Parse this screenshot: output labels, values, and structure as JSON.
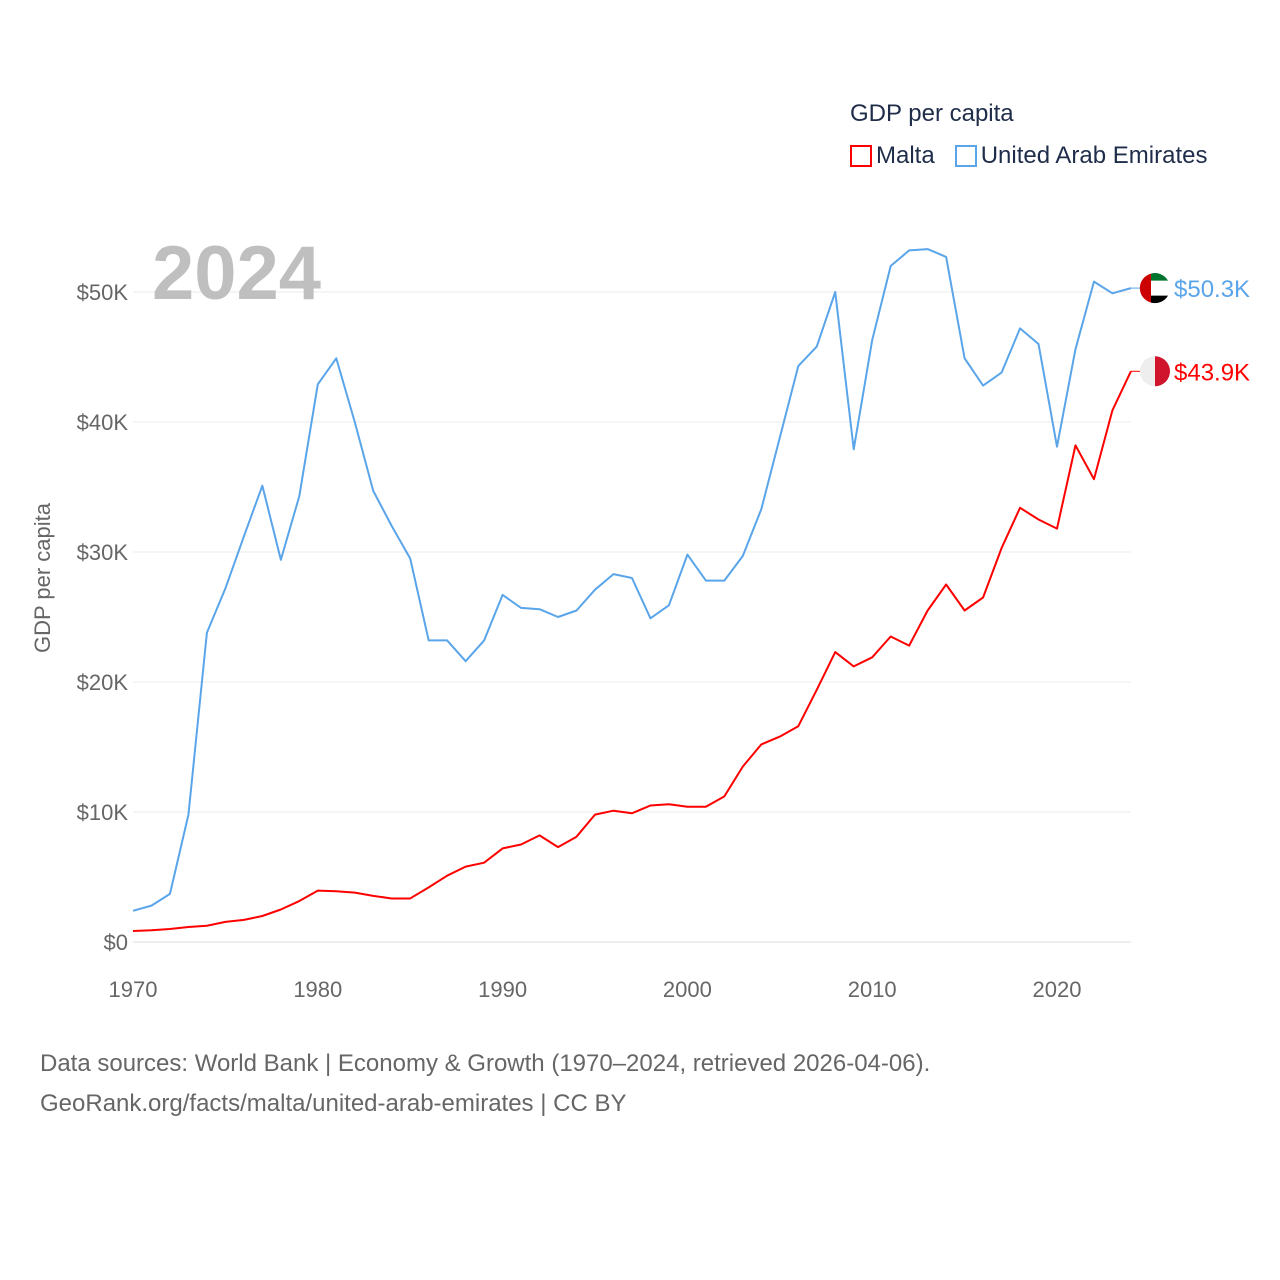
{
  "legend": {
    "title": "GDP per capita",
    "items": [
      {
        "name": "Malta",
        "color": "#ff0000"
      },
      {
        "name": "United Arab Emirates",
        "color": "#5aa5ea"
      }
    ]
  },
  "year_label": "2024",
  "footer": {
    "line1": "Data sources: World Bank | Economy & Growth (1970–2024, retrieved 2026-04-06).",
    "line2": "GeoRank.org/facts/malta/united-arab-emirates | CC BY"
  },
  "chart_data": {
    "type": "line",
    "title": "GDP per capita",
    "xlabel": "",
    "ylabel": "GDP per capita",
    "xlim": [
      1970,
      2024
    ],
    "ylim": [
      0,
      53000
    ],
    "x_ticks": [
      "1970",
      "1980",
      "1990",
      "2000",
      "2010",
      "2020"
    ],
    "y_ticks": [
      "$0",
      "$10K",
      "$20K",
      "$30K",
      "$40K",
      "$50K"
    ],
    "grid": true,
    "legend_position": "top-right",
    "x": [
      1970,
      1971,
      1972,
      1973,
      1974,
      1975,
      1976,
      1977,
      1978,
      1979,
      1980,
      1981,
      1982,
      1983,
      1984,
      1985,
      1986,
      1987,
      1988,
      1989,
      1990,
      1991,
      1992,
      1993,
      1994,
      1995,
      1996,
      1997,
      1998,
      1999,
      2000,
      2001,
      2002,
      2003,
      2004,
      2005,
      2006,
      2007,
      2008,
      2009,
      2010,
      2011,
      2012,
      2013,
      2014,
      2015,
      2016,
      2017,
      2018,
      2019,
      2020,
      2021,
      2022,
      2023,
      2024
    ],
    "series": [
      {
        "name": "Malta",
        "color": "#ff0000",
        "end_label": "$43.9K",
        "values": [
          850,
          900,
          1000,
          1150,
          1250,
          1550,
          1700,
          2000,
          2500,
          3150,
          3950,
          3900,
          3800,
          3550,
          3350,
          3350,
          4200,
          5100,
          5800,
          6100,
          7200,
          7500,
          8200,
          7300,
          8100,
          9800,
          10100,
          9900,
          10500,
          10600,
          10400,
          10400,
          11200,
          13500,
          15200,
          15800,
          16600,
          19400,
          22300,
          21200,
          21900,
          23500,
          22800,
          25500,
          27500,
          25500,
          26500,
          30300,
          33400,
          32500,
          31800,
          38200,
          35600,
          40900,
          43900
        ]
      },
      {
        "name": "United Arab Emirates",
        "color": "#5aa5ea",
        "end_label": "$50.3K",
        "values": [
          2400,
          2800,
          3700,
          9800,
          23800,
          27200,
          31200,
          35100,
          29400,
          34300,
          42900,
          44900,
          40000,
          34700,
          32000,
          29500,
          23200,
          23200,
          21600,
          23200,
          26700,
          25700,
          25600,
          25000,
          25500,
          27100,
          28300,
          28000,
          24900,
          25900,
          29800,
          27800,
          27800,
          29700,
          33300,
          38800,
          44300,
          45800,
          50000,
          37900,
          46300,
          52000,
          53200,
          53300,
          52700,
          44900,
          42800,
          43800,
          47200,
          46000,
          38100,
          45600,
          50800,
          49900,
          50300
        ]
      }
    ]
  }
}
